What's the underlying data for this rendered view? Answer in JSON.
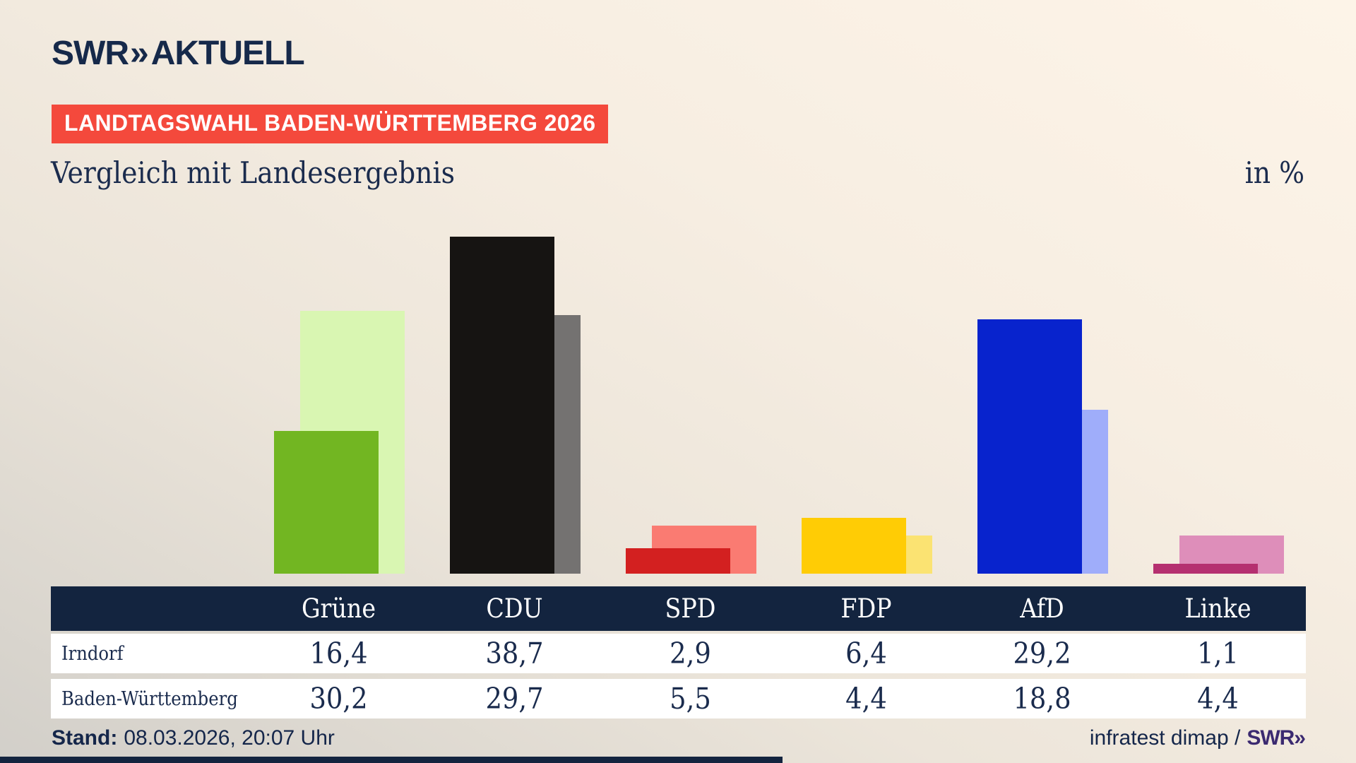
{
  "brand": {
    "swr": "SWR",
    "chevron": "»",
    "aktuell": "AKTUELL"
  },
  "banner": {
    "label": "LANDTAGSWAHL BADEN-WÜRTTEMBERG 2026"
  },
  "heading": {
    "title": "Vergleich mit Landesergebnis",
    "unit": "in %"
  },
  "chart_data": {
    "type": "bar",
    "title": "Vergleich mit Landesergebnis",
    "unit": "%",
    "categories": [
      "Grüne",
      "CDU",
      "SPD",
      "FDP",
      "AfD",
      "Linke"
    ],
    "series": [
      {
        "name": "Irndorf",
        "values": [
          16.4,
          38.7,
          2.9,
          6.4,
          29.2,
          1.1
        ]
      },
      {
        "name": "Baden-Württemberg",
        "values": [
          30.2,
          29.7,
          5.5,
          4.4,
          18.8,
          4.4
        ]
      }
    ],
    "series_colors": {
      "Irndorf": [
        "#72b622",
        "#161412",
        "#d32020",
        "#ffcc05",
        "#0823cd",
        "#b53070"
      ],
      "Baden-Württemberg": [
        "#d9f6b2",
        "#747271",
        "#fa7b72",
        "#fbe372",
        "#9fadfa",
        "#de8eba"
      ]
    },
    "ylim": [
      0,
      43
    ],
    "grid": false,
    "axes_visible": false,
    "legend_position": "table-below-chart"
  },
  "table": {
    "header": [
      "Grüne",
      "CDU",
      "SPD",
      "FDP",
      "AfD",
      "Linke"
    ],
    "rows": [
      {
        "label": "Irndorf",
        "values": [
          "16,4",
          "38,7",
          "2,9",
          "6,4",
          "29,2",
          "1,1"
        ]
      },
      {
        "label": "Baden-Württemberg",
        "values": [
          "30,2",
          "29,7",
          "5,5",
          "4,4",
          "18,8",
          "4,4"
        ]
      }
    ]
  },
  "footer": {
    "stand_label": "Stand:",
    "stand_value": "08.03.2026, 20:07 Uhr",
    "source_text": "infratest dimap /",
    "source_brand": "SWR»"
  },
  "colors": {
    "accent_red": "#f4493c",
    "navy_text": "#1a2b4d",
    "table_header_bg": "#13243f",
    "source_brand_color": "#3b2a70"
  }
}
